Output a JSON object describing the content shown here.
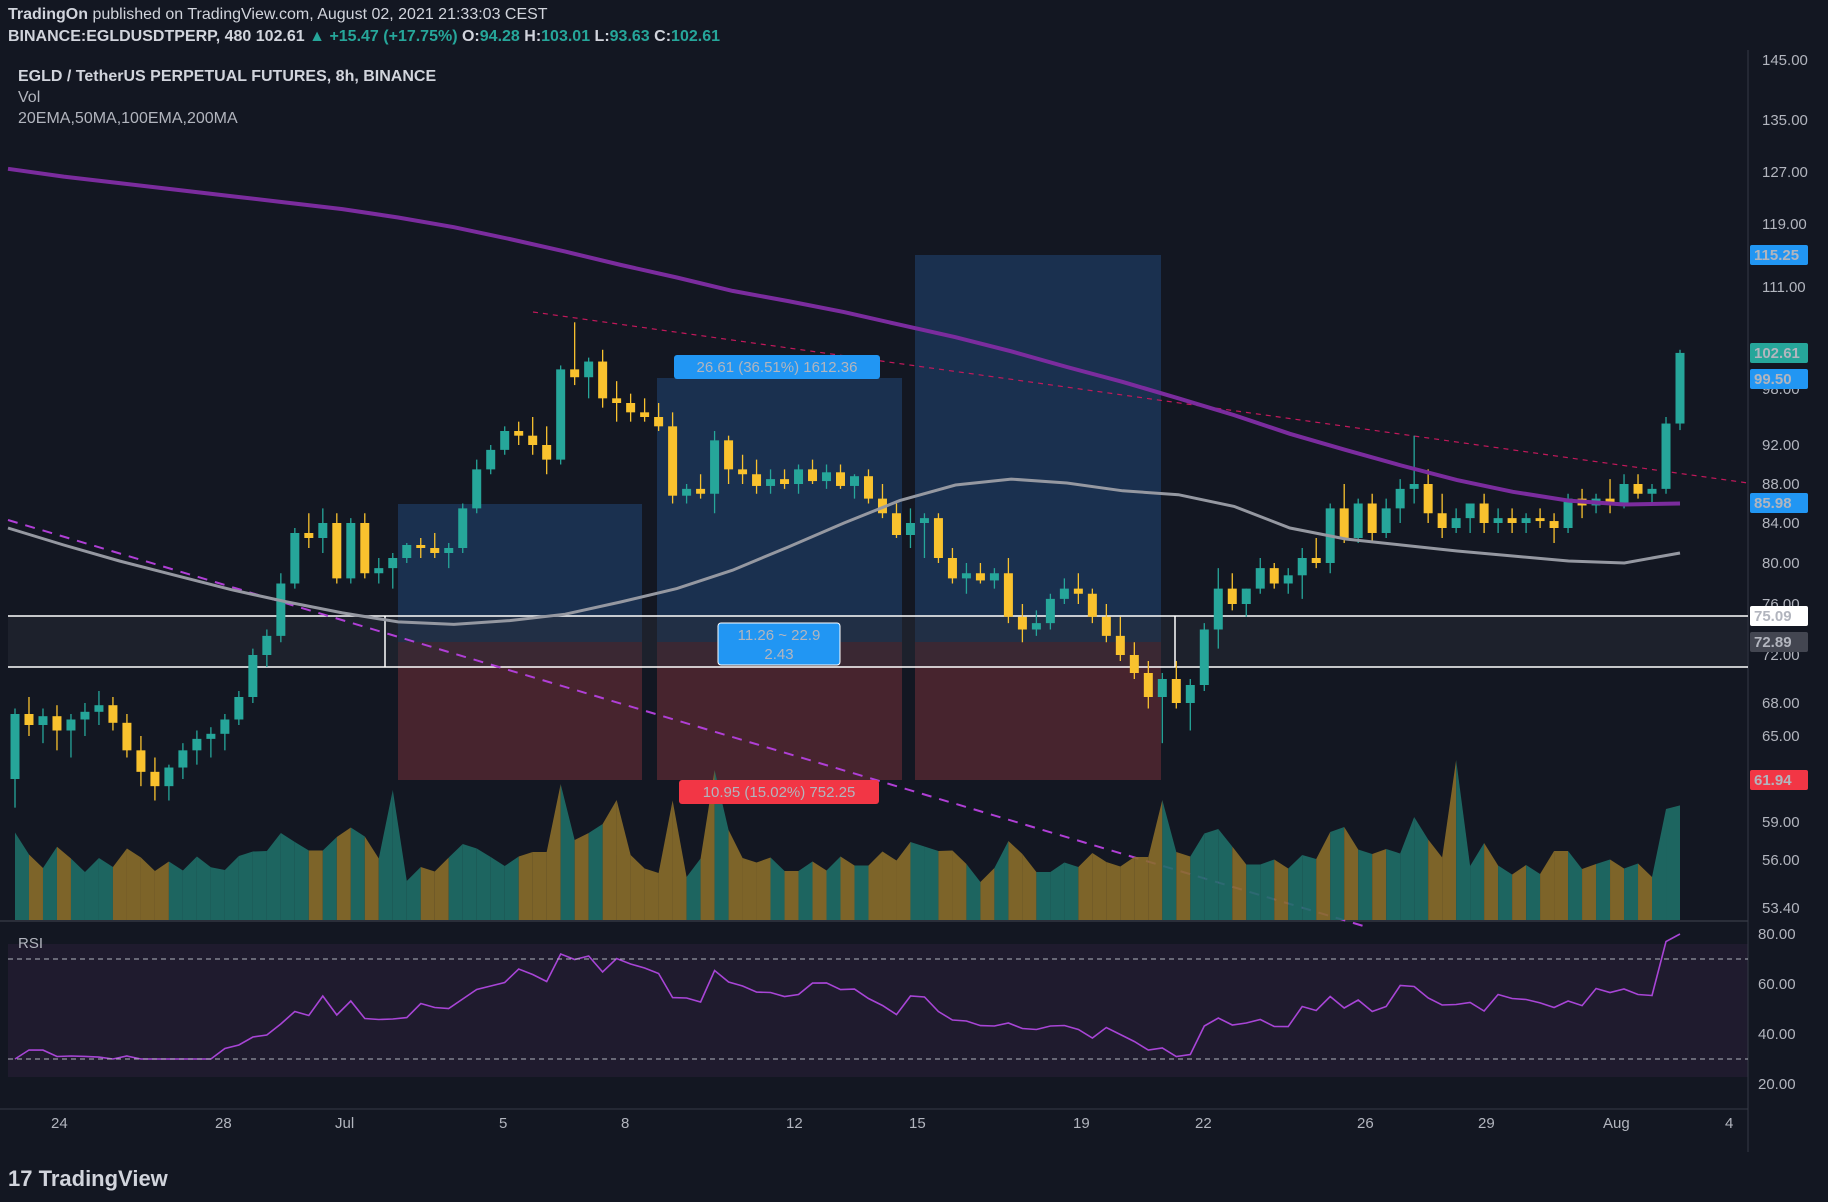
{
  "header": {
    "publisher": "TradingOn",
    "published_text": "published on TradingView.com, August 02, 2021 21:33:03 CEST",
    "symbol": "BINANCE:EGLDUSDTPERP, 480",
    "last": "102.61",
    "change": "▲ +15.47 (+17.75%)",
    "o_label": "O:",
    "o": "94.28",
    "h_label": "H:",
    "h": "103.01",
    "l_label": "L:",
    "l": "93.63",
    "c_label": "C:",
    "c": "102.61"
  },
  "legend": {
    "title": "EGLD / TetherUS PERPETUAL FUTURES, 8h, BINANCE",
    "vol": "Vol",
    "mas": "20EMA,50MA,100EMA,200MA"
  },
  "footer": {
    "brand": "TradingView"
  },
  "colors": {
    "bg": "#131722",
    "up": "#26a69a",
    "down": "#f9c22e",
    "ma200": "#7b2c9e",
    "ma100": "#9598a1",
    "profit": "#1e3a5f",
    "loss": "#5a2a33",
    "blue_label": "#2196f3",
    "red_label": "#f23645"
  },
  "annotations": {
    "profit_label": "26.61 (36.51%) 1612.36",
    "loss_label": "10.95 (15.02%) 752.25",
    "range_label_1": "11.26 ~ 22.9",
    "range_label_2": "2.43",
    "rsi_label": "RSI"
  },
  "price_labels": {
    "target": "115.25",
    "last": "102.61",
    "resistance": "99.50",
    "ma": "85.98",
    "level_top": "75.09",
    "level_bot": "72.89",
    "stop": "61.94"
  },
  "chart_data": {
    "type": "candlestick",
    "title": "EGLD / TetherUS PERPETUAL FUTURES, 8h, BINANCE",
    "price_ticks": [
      "145.00",
      "135.00",
      "127.00",
      "119.00",
      "111.00",
      "98.00",
      "92.00",
      "88.00",
      "84.00",
      "80.00",
      "76.00",
      "72.00",
      "68.00",
      "65.00",
      "59.00",
      "56.00",
      "53.40"
    ],
    "price_tick_values": [
      145,
      135,
      127,
      119,
      111,
      98,
      92,
      88,
      84,
      80,
      76,
      72,
      68,
      65,
      59,
      56,
      53.4
    ],
    "rsi_ticks": [
      "80.00",
      "60.00",
      "40.00",
      "20.00"
    ],
    "rsi_tick_values": [
      80,
      60,
      40,
      20
    ],
    "x_ticks": [
      "24",
      "28",
      "Jul",
      "5",
      "8",
      "12",
      "15",
      "19",
      "22",
      "26",
      "29",
      "Aug",
      "4"
    ],
    "candles_ohlc": [
      [
        62.0,
        67.5,
        60.0,
        67.0
      ],
      [
        67.0,
        68.5,
        65.0,
        66.0
      ],
      [
        66.0,
        67.5,
        64.5,
        66.8
      ],
      [
        66.8,
        67.8,
        64.0,
        65.5
      ],
      [
        65.5,
        67.0,
        63.5,
        66.5
      ],
      [
        66.5,
        68.0,
        65.0,
        67.2
      ],
      [
        67.2,
        69.0,
        66.0,
        67.8
      ],
      [
        67.8,
        68.5,
        65.5,
        66.2
      ],
      [
        66.2,
        67.0,
        63.5,
        64.0
      ],
      [
        64.0,
        65.0,
        61.5,
        62.5
      ],
      [
        62.5,
        63.5,
        60.5,
        61.5
      ],
      [
        61.5,
        63.0,
        60.5,
        62.8
      ],
      [
        62.8,
        64.5,
        62.0,
        64.0
      ],
      [
        64.0,
        65.5,
        63.0,
        64.8
      ],
      [
        64.8,
        65.8,
        63.5,
        65.2
      ],
      [
        65.2,
        67.0,
        64.0,
        66.5
      ],
      [
        66.5,
        69.0,
        66.0,
        68.5
      ],
      [
        68.5,
        72.5,
        68.0,
        72.0
      ],
      [
        72.0,
        74.0,
        71.0,
        73.5
      ],
      [
        73.5,
        79.0,
        73.0,
        78.0
      ],
      [
        78.0,
        83.5,
        77.5,
        83.0
      ],
      [
        83.0,
        85.0,
        81.5,
        82.5
      ],
      [
        82.5,
        85.5,
        81.0,
        84.0
      ],
      [
        84.0,
        85.0,
        78.0,
        78.5
      ],
      [
        78.5,
        84.5,
        78.0,
        84.0
      ],
      [
        84.0,
        85.0,
        78.5,
        79.0
      ],
      [
        79.0,
        80.5,
        78.0,
        79.5
      ],
      [
        79.5,
        81.0,
        77.5,
        80.5
      ],
      [
        80.5,
        82.0,
        80.0,
        81.8
      ],
      [
        81.8,
        82.5,
        80.5,
        81.5
      ],
      [
        81.5,
        83.0,
        80.5,
        81.0
      ],
      [
        81.0,
        82.0,
        79.5,
        81.5
      ],
      [
        81.5,
        86.0,
        81.0,
        85.5
      ],
      [
        85.5,
        90.5,
        85.0,
        89.5
      ],
      [
        89.5,
        92.0,
        89.0,
        91.5
      ],
      [
        91.5,
        94.0,
        91.0,
        93.5
      ],
      [
        93.5,
        94.5,
        92.0,
        93.0
      ],
      [
        93.0,
        95.0,
        91.0,
        92.0
      ],
      [
        92.0,
        94.0,
        89.0,
        90.5
      ],
      [
        90.5,
        101.0,
        90.0,
        100.5
      ],
      [
        100.5,
        106.5,
        98.5,
        99.5
      ],
      [
        99.5,
        102.0,
        97.0,
        101.5
      ],
      [
        101.5,
        103.0,
        96.0,
        97.0
      ],
      [
        97.0,
        99.0,
        94.5,
        96.5
      ],
      [
        96.5,
        97.5,
        94.5,
        95.5
      ],
      [
        95.5,
        97.0,
        94.5,
        95.0
      ],
      [
        95.0,
        96.5,
        93.5,
        94.0
      ],
      [
        94.0,
        95.5,
        86.0,
        86.8
      ],
      [
        86.8,
        88.0,
        86.0,
        87.5
      ],
      [
        87.5,
        89.0,
        86.5,
        87.0
      ],
      [
        87.0,
        93.5,
        85.0,
        92.5
      ],
      [
        92.5,
        93.0,
        88.0,
        89.5
      ],
      [
        89.5,
        91.0,
        88.0,
        89.0
      ],
      [
        89.0,
        90.5,
        87.0,
        87.8
      ],
      [
        87.8,
        89.5,
        87.0,
        88.5
      ],
      [
        88.5,
        89.5,
        87.5,
        88.0
      ],
      [
        88.0,
        90.0,
        87.0,
        89.5
      ],
      [
        89.5,
        90.5,
        88.0,
        88.3
      ],
      [
        88.3,
        90.0,
        87.5,
        89.2
      ],
      [
        89.2,
        90.0,
        87.5,
        87.8
      ],
      [
        87.8,
        89.0,
        86.5,
        88.8
      ],
      [
        88.8,
        89.5,
        86.0,
        86.5
      ],
      [
        86.5,
        88.0,
        84.5,
        85.0
      ],
      [
        85.0,
        86.0,
        82.5,
        82.8
      ],
      [
        82.8,
        85.5,
        81.5,
        84.0
      ],
      [
        84.0,
        85.0,
        80.5,
        84.5
      ],
      [
        84.5,
        85.0,
        80.0,
        80.5
      ],
      [
        80.5,
        81.5,
        78.0,
        78.5
      ],
      [
        78.5,
        80.0,
        77.0,
        79.0
      ],
      [
        79.0,
        80.0,
        78.0,
        78.3
      ],
      [
        78.3,
        79.5,
        77.5,
        79.0
      ],
      [
        79.0,
        80.5,
        74.5,
        75.0
      ],
      [
        75.0,
        76.0,
        73.0,
        74.0
      ],
      [
        74.0,
        75.5,
        73.5,
        74.5
      ],
      [
        74.5,
        77.0,
        74.0,
        76.5
      ],
      [
        76.5,
        78.5,
        76.0,
        77.5
      ],
      [
        77.5,
        79.0,
        76.0,
        77.0
      ],
      [
        77.0,
        77.5,
        74.5,
        75.0
      ],
      [
        75.0,
        76.0,
        73.0,
        73.5
      ],
      [
        73.5,
        75.0,
        71.5,
        72.0
      ],
      [
        72.0,
        73.0,
        70.0,
        70.5
      ],
      [
        70.5,
        71.5,
        67.5,
        68.5
      ],
      [
        68.5,
        70.5,
        64.5,
        70.0
      ],
      [
        70.0,
        71.5,
        67.5,
        68.0
      ],
      [
        68.0,
        70.0,
        65.5,
        69.5
      ],
      [
        69.5,
        74.5,
        69.0,
        74.0
      ],
      [
        74.0,
        79.5,
        72.5,
        77.5
      ],
      [
        77.5,
        79.0,
        75.5,
        76.0
      ],
      [
        76.0,
        77.5,
        75.0,
        77.5
      ],
      [
        77.5,
        80.5,
        77.0,
        79.5
      ],
      [
        79.5,
        80.0,
        77.5,
        78.0
      ],
      [
        78.0,
        79.5,
        77.0,
        78.8
      ],
      [
        78.8,
        81.5,
        76.5,
        80.5
      ],
      [
        80.5,
        82.5,
        79.5,
        80.0
      ],
      [
        80.0,
        86.0,
        79.0,
        85.5
      ],
      [
        85.5,
        88.0,
        82.0,
        82.5
      ],
      [
        82.5,
        86.5,
        82.0,
        86.0
      ],
      [
        86.0,
        87.0,
        82.0,
        83.0
      ],
      [
        83.0,
        86.5,
        82.5,
        85.5
      ],
      [
        85.5,
        88.5,
        84.0,
        87.5
      ],
      [
        87.5,
        93.0,
        86.0,
        88.0
      ],
      [
        88.0,
        89.5,
        84.0,
        85.0
      ],
      [
        85.0,
        87.0,
        82.5,
        83.5
      ],
      [
        83.5,
        85.5,
        83.0,
        84.5
      ],
      [
        84.5,
        86.0,
        83.0,
        86.0
      ],
      [
        86.0,
        87.0,
        83.0,
        84.0
      ],
      [
        84.0,
        85.5,
        83.0,
        84.5
      ],
      [
        84.5,
        85.5,
        83.0,
        84.0
      ],
      [
        84.0,
        85.0,
        83.0,
        84.5
      ],
      [
        84.5,
        85.5,
        83.5,
        84.2
      ],
      [
        84.2,
        85.0,
        82.0,
        83.5
      ],
      [
        83.5,
        87.0,
        83.0,
        86.5
      ],
      [
        86.5,
        87.5,
        84.5,
        85.8
      ],
      [
        85.8,
        87.0,
        85.0,
        86.5
      ],
      [
        86.5,
        88.5,
        85.0,
        86.0
      ],
      [
        86.0,
        89.0,
        85.5,
        88.0
      ],
      [
        88.0,
        89.0,
        86.5,
        87.0
      ],
      [
        87.0,
        88.0,
        86.0,
        87.5
      ],
      [
        87.5,
        95.0,
        87.0,
        94.3
      ],
      [
        94.3,
        103.0,
        93.6,
        102.6
      ]
    ],
    "series": [
      {
        "name": "200MA",
        "values": [
          127.5,
          126.3,
          125.3,
          124.3,
          123.3,
          122.3,
          121.3,
          120.0,
          118.6,
          117.1,
          115.5,
          113.8,
          112.2,
          110.5,
          109.2,
          107.8,
          106.2,
          104.6,
          102.8,
          100.8,
          98.9,
          97.0,
          95.2,
          93.2,
          91.5,
          89.9,
          88.4,
          87.2,
          86.3,
          85.9,
          86.0
        ]
      },
      {
        "name": "100EMA",
        "values": [
          83.5,
          81.8,
          80.2,
          78.8,
          77.4,
          76.2,
          75.3,
          74.6,
          74.4,
          74.7,
          75.2,
          76.2,
          77.5,
          79.3,
          81.6,
          84.0,
          86.3,
          87.9,
          88.5,
          88.1,
          87.3,
          86.9,
          85.7,
          83.5,
          82.4,
          81.8,
          81.2,
          80.7,
          80.2,
          80.0,
          81.0
        ]
      }
    ],
    "ylabel": "",
    "xlabel": "",
    "volume": "Vol",
    "rsi": "RSI"
  }
}
